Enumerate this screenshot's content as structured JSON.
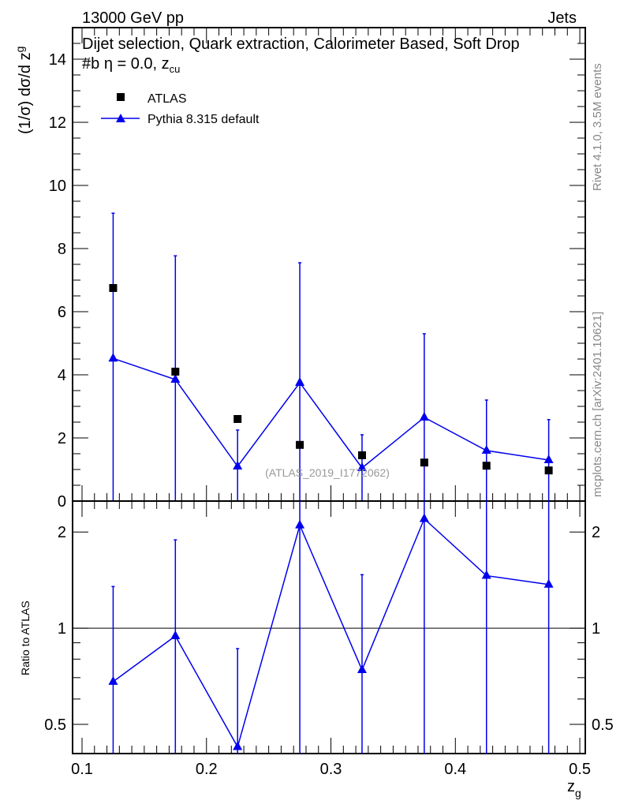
{
  "chart_data": {
    "type": "scatter",
    "header_left": "13000 GeV pp",
    "header_right": "Jets",
    "title": "Dijet selection, Quark extraction, Calorimeter Based, Soft Drop #beta = 0.0, z_cut",
    "title_main": "Dijet selection, Quark extraction, Calorimeter Based, Soft Drop #b",
    "title_tail": "η = 0.0, z",
    "title_sub": "cu",
    "ylabel": "(1/σ) dσ/d z",
    "ylabel_sub": "g",
    "ratio_ylabel": "Ratio to ATLAS",
    "xlabel": "z",
    "xlabel_sub": "g",
    "side_label_top": "Rivet 4.1.0,  3.5M events",
    "side_label_bottom": "mcplots.cern.ch [arXiv:2401.10621]",
    "watermark": "(ATLAS_2019_I1772062)",
    "xlim": [
      0.0924,
      0.5044
    ],
    "ylim": [
      0,
      15
    ],
    "ratio_ylim": [
      0.405,
      2.5
    ],
    "x_ticks": [
      "0.1",
      "0.2",
      "0.3",
      "0.4",
      "0.5"
    ],
    "y_ticks": [
      "0",
      "2",
      "4",
      "6",
      "8",
      "10",
      "12",
      "14"
    ],
    "ratio_ticks": [
      "0.5",
      "1",
      "2"
    ],
    "x": [
      0.125,
      0.175,
      0.225,
      0.275,
      0.325,
      0.375,
      0.425,
      0.475
    ],
    "series": [
      {
        "name": "ATLAS",
        "color": "#000000",
        "marker": "square",
        "values": [
          6.75,
          4.1,
          2.6,
          1.78,
          1.45,
          1.22,
          1.12,
          0.97
        ]
      },
      {
        "name": "Pythia 8.315 default",
        "color": "#0000ee",
        "marker": "triangle",
        "values": [
          4.52,
          3.85,
          1.1,
          3.75,
          1.05,
          2.65,
          1.6,
          1.3
        ],
        "err_up": [
          9.12,
          7.77,
          2.25,
          7.55,
          2.1,
          5.3,
          3.2,
          2.58
        ],
        "err_down": [
          0,
          0,
          0,
          0,
          0,
          0,
          0,
          0
        ],
        "ratio": [
          0.68,
          0.945,
          0.425,
          2.1,
          0.74,
          2.2,
          1.46,
          1.37
        ],
        "ratio_err_up": [
          1.35,
          1.89,
          0.863,
          3,
          1.47,
          3,
          3,
          3
        ],
        "ratio_err_down": [
          0.3,
          0.3,
          0.3,
          0.3,
          0.3,
          0.3,
          0.3,
          0.3
        ]
      }
    ],
    "legend_position": "top-left"
  }
}
